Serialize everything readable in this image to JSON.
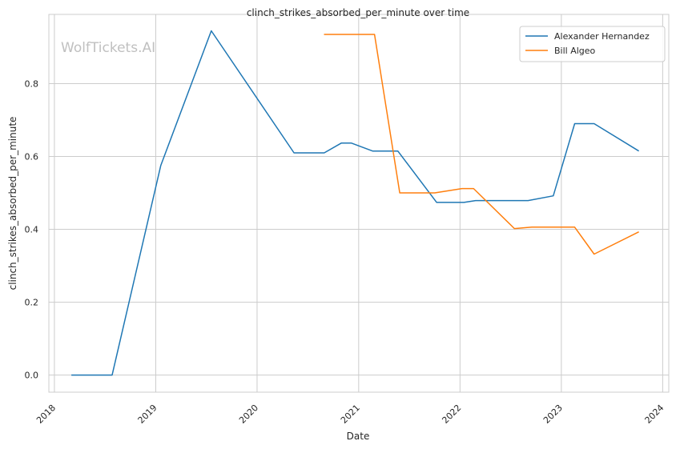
{
  "watermark": "WolfTickets.AI",
  "chart_data": {
    "type": "line",
    "title": "clinch_strikes_absorbed_per_minute over time",
    "xlabel": "Date",
    "ylabel": "clinch_strikes_absorbed_per_minute",
    "x_ticks": [
      "2018",
      "2019",
      "2020",
      "2021",
      "2022",
      "2023",
      "2024"
    ],
    "y_ticks": [
      "0.0",
      "0.2",
      "0.4",
      "0.6",
      "0.8"
    ],
    "xlim": [
      "2017-12-12",
      "2024-01-23"
    ],
    "ylim": [
      -0.047,
      0.99
    ],
    "grid": true,
    "legend_position": "top-right",
    "series": [
      {
        "name": "Alexander Hernandez",
        "color": "#1f77b4",
        "points": [
          [
            "2018-03-03",
            0.0
          ],
          [
            "2018-07-28",
            0.0
          ],
          [
            "2019-01-19",
            0.575
          ],
          [
            "2019-07-20",
            0.945
          ],
          [
            "2020-05-13",
            0.61
          ],
          [
            "2020-08-30",
            0.61
          ],
          [
            "2020-10-31",
            0.637
          ],
          [
            "2020-12-05",
            0.637
          ],
          [
            "2021-02-20",
            0.615
          ],
          [
            "2021-05-22",
            0.615
          ],
          [
            "2021-10-09",
            0.474
          ],
          [
            "2022-01-15",
            0.474
          ],
          [
            "2022-02-26",
            0.479
          ],
          [
            "2022-09-03",
            0.479
          ],
          [
            "2022-12-03",
            0.492
          ],
          [
            "2023-02-18",
            0.69
          ],
          [
            "2023-04-29",
            0.69
          ],
          [
            "2023-10-07",
            0.615
          ]
        ]
      },
      {
        "name": "Bill Algeo",
        "color": "#ff7f0e",
        "points": [
          [
            "2020-08-29",
            0.935
          ],
          [
            "2021-02-27",
            0.935
          ],
          [
            "2021-05-29",
            0.5
          ],
          [
            "2021-10-02",
            0.5
          ],
          [
            "2022-01-08",
            0.512
          ],
          [
            "2022-02-19",
            0.512
          ],
          [
            "2022-07-16",
            0.402
          ],
          [
            "2022-09-17",
            0.406
          ],
          [
            "2023-02-18",
            0.406
          ],
          [
            "2023-04-29",
            0.332
          ],
          [
            "2023-10-07",
            0.393
          ]
        ]
      }
    ]
  }
}
